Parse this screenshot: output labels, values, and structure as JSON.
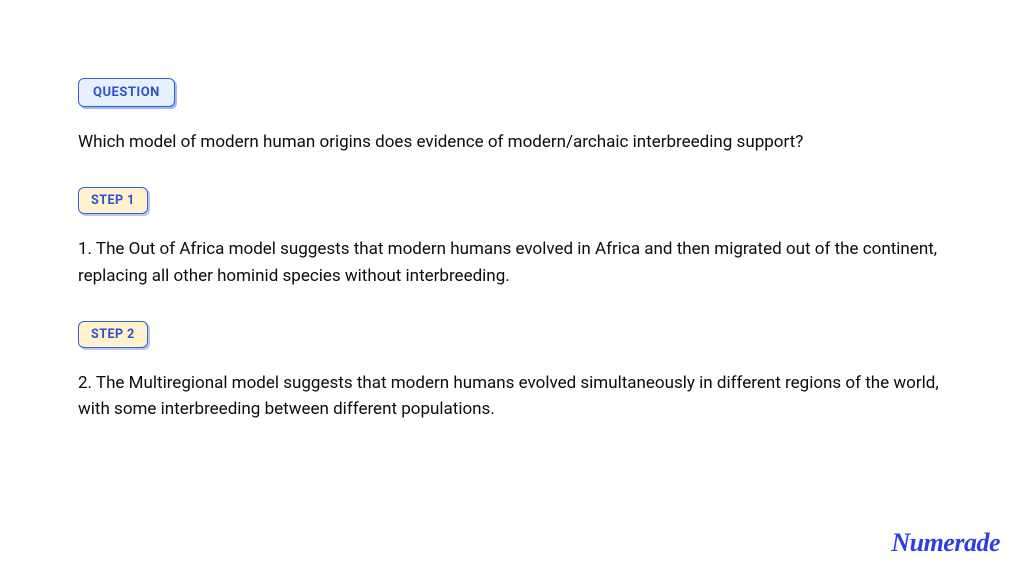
{
  "question": {
    "badge_label": "QUESTION",
    "text": "Which model of modern human origins does evidence of modern/archaic interbreeding support?"
  },
  "steps": [
    {
      "badge_label": "STEP 1",
      "text": "1. The Out of Africa model suggests that modern humans evolved in Africa and then migrated out of the continent, replacing all other hominid species without interbreeding."
    },
    {
      "badge_label": "STEP 2",
      "text": "2. The Multiregional model suggests that modern humans evolved simultaneously in different regions of the world, with some interbreeding between different populations."
    }
  ],
  "brand": "Numerade",
  "colors": {
    "badge_question_bg": "#e6f0ff",
    "badge_step_bg": "#fff2cc",
    "badge_border": "#3a5fd9",
    "badge_text": "#2e4fcf",
    "body_text": "#0b0d12",
    "brand_color": "#2e3fe0",
    "background": "#ffffff"
  },
  "typography": {
    "badge_fontsize": 13,
    "body_fontsize": 17,
    "brand_fontsize": 26
  }
}
